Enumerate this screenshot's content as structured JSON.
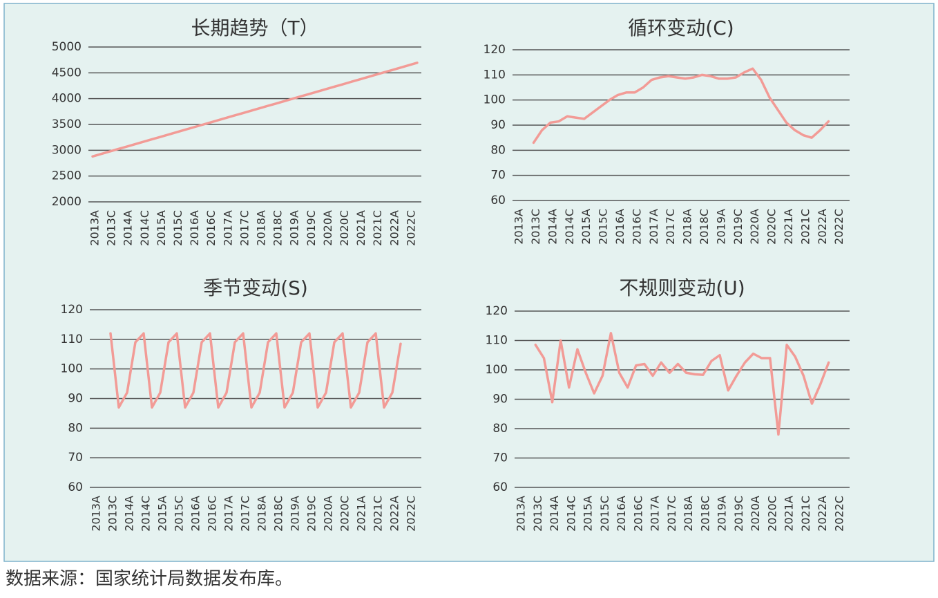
{
  "chart_data": [
    {
      "type": "line",
      "title": "长期趋势（T）",
      "categories": [
        "2013A",
        null,
        "2013C",
        null,
        "2014A",
        null,
        "2014C",
        null,
        "2015A",
        null,
        "2015C",
        null,
        "2016A",
        null,
        "2016C",
        null,
        "2017A",
        null,
        "2017C",
        null,
        "2018A",
        null,
        "2018C",
        null,
        "2019A",
        null,
        "2019C",
        null,
        "2020A",
        null,
        "2020C",
        null,
        "2021A",
        null,
        "2021C",
        null,
        "2022A",
        null,
        "2022C",
        null
      ],
      "values": [
        2880,
        2927,
        2973,
        3020,
        3066,
        3113,
        3159,
        3206,
        3252,
        3299,
        3345,
        3392,
        3438,
        3485,
        3531,
        3578,
        3624,
        3671,
        3717,
        3764,
        3810,
        3857,
        3903,
        3950,
        3996,
        4043,
        4089,
        4136,
        4182,
        4229,
        4275,
        4322,
        4368,
        4415,
        4461,
        4508,
        4554,
        4601,
        4647,
        4694
      ],
      "color": "#f29b96",
      "ylim": [
        2000,
        5000
      ],
      "yticks": [
        2000,
        2500,
        3000,
        3500,
        4000,
        4500,
        5000
      ],
      "grid": true
    },
    {
      "type": "line",
      "title": "循环变动(C)",
      "categories": [
        "2013A",
        null,
        "2013C",
        null,
        "2014A",
        null,
        "2014C",
        null,
        "2015A",
        null,
        "2015C",
        null,
        "2016A",
        null,
        "2016C",
        null,
        "2017A",
        null,
        "2017C",
        null,
        "2018A",
        null,
        "2018C",
        null,
        "2019A",
        null,
        "2019C",
        null,
        "2020A",
        null,
        "2020C",
        null,
        "2021A",
        null,
        "2021C",
        null,
        "2022A",
        null,
        "2022C",
        null
      ],
      "values": [
        null,
        null,
        83,
        88,
        91,
        91.5,
        93.5,
        93,
        92.5,
        95,
        97.5,
        100,
        102,
        103,
        103,
        105,
        108,
        109,
        109.5,
        109,
        108.5,
        109,
        110,
        109.5,
        108.5,
        108.5,
        109,
        111,
        112.5,
        108,
        101,
        96,
        91,
        88,
        86,
        85,
        88,
        91.5,
        null,
        null
      ],
      "color": "#f29b96",
      "ylim": [
        60,
        120
      ],
      "yticks": [
        60,
        70,
        80,
        90,
        100,
        110,
        120
      ],
      "grid": true
    },
    {
      "type": "line",
      "title": "季节变动(S)",
      "categories": [
        "2013A",
        null,
        "2013C",
        null,
        "2014A",
        null,
        "2014C",
        null,
        "2015A",
        null,
        "2015C",
        null,
        "2016A",
        null,
        "2016C",
        null,
        "2017A",
        null,
        "2017C",
        null,
        "2018A",
        null,
        "2018C",
        null,
        "2019A",
        null,
        "2019C",
        null,
        "2020A",
        null,
        "2020C",
        null,
        "2021A",
        null,
        "2021C",
        null,
        "2022A",
        null,
        "2022C",
        null
      ],
      "values": [
        null,
        null,
        112,
        87,
        92,
        109,
        112,
        87,
        92,
        109,
        112,
        87,
        92,
        109,
        112,
        87,
        92,
        109,
        112,
        87,
        92,
        109,
        112,
        87,
        92,
        109,
        112,
        87,
        92,
        109,
        112,
        87,
        92,
        109,
        112,
        87,
        92,
        108.5,
        null,
        null
      ],
      "color": "#f29b96",
      "ylim": [
        60,
        120
      ],
      "yticks": [
        60,
        70,
        80,
        90,
        100,
        110,
        120
      ],
      "grid": true
    },
    {
      "type": "line",
      "title": "不规则变动(U)",
      "categories": [
        "2013A",
        null,
        "2013C",
        null,
        "2014A",
        null,
        "2014C",
        null,
        "2015A",
        null,
        "2015C",
        null,
        "2016A",
        null,
        "2016C",
        null,
        "2017A",
        null,
        "2017C",
        null,
        "2018A",
        null,
        "2018C",
        null,
        "2019A",
        null,
        "2019C",
        null,
        "2020A",
        null,
        "2020C",
        null,
        "2021A",
        null,
        "2021C",
        null,
        "2022A",
        null,
        "2022C",
        null
      ],
      "values": [
        null,
        null,
        108.5,
        104,
        89,
        110,
        94,
        107,
        99,
        92,
        98,
        112.5,
        99,
        94,
        101.5,
        102,
        98,
        102.5,
        99,
        102,
        99,
        98.5,
        98.3,
        103,
        105,
        93,
        98,
        102.5,
        105.5,
        104,
        104,
        78,
        108.5,
        104.5,
        98,
        88.5,
        95,
        102.5,
        null,
        null
      ],
      "color": "#f29b96",
      "ylim": [
        60,
        120
      ],
      "yticks": [
        60,
        70,
        80,
        90,
        100,
        110,
        120
      ],
      "grid": true
    }
  ],
  "source": "数据来源：国家统计局数据发布库。"
}
